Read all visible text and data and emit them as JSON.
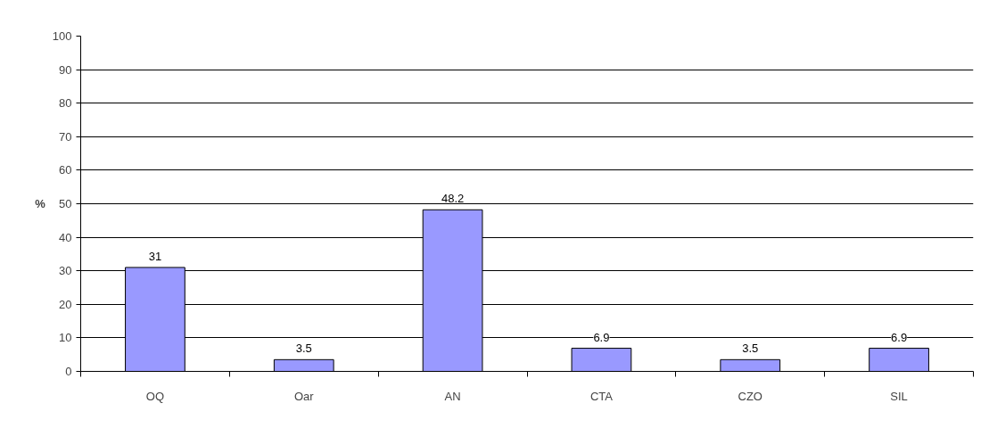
{
  "chart_data": {
    "type": "bar",
    "ylabel": "%",
    "categories": [
      "OQ",
      "Oar",
      "AN",
      "CTA",
      "CZO",
      "SIL"
    ],
    "values": [
      31,
      3.5,
      48.2,
      6.9,
      3.5,
      6.9
    ],
    "color": "#9999ff",
    "ylim": [
      0,
      100
    ],
    "yticks": [
      0,
      10,
      20,
      30,
      40,
      50,
      60,
      70,
      80,
      90,
      100
    ],
    "grid": "y",
    "data_labels": true
  }
}
